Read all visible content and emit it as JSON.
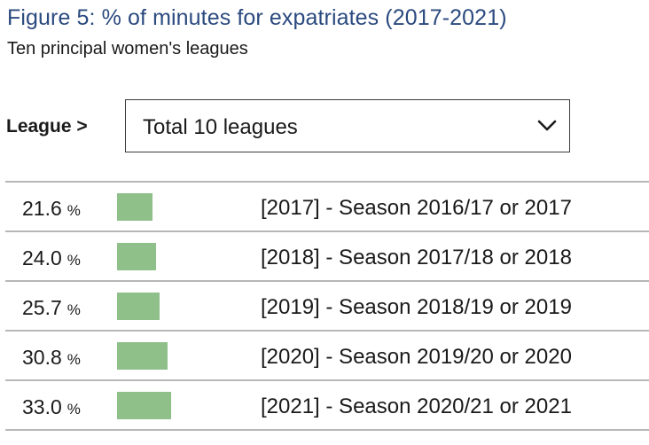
{
  "header": {
    "title": "Figure 5: % of minutes for expatriates (2017-2021)",
    "subtitle": "Ten principal women's leagues"
  },
  "filter": {
    "label": "League >",
    "selected": "Total 10 leagues",
    "icon": "chevron-down-icon"
  },
  "colors": {
    "title": "#2b4a7f",
    "bar": "#8fc08a",
    "rule": "#b8b8b8"
  },
  "chart_data": {
    "type": "bar",
    "orientation": "horizontal",
    "unit": "%",
    "xlim": [
      0,
      100
    ],
    "categories": [
      "[2017] - Season 2016/17 or 2017",
      "[2018] - Season 2017/18 or 2018",
      "[2019] - Season 2018/19 or 2019",
      "[2020] - Season 2019/20 or 2020",
      "[2021] - Season 2020/21 or 2021"
    ],
    "values": [
      21.6,
      24.0,
      25.7,
      30.8,
      33.0
    ],
    "value_labels": [
      "21.6",
      "24.0",
      "25.7",
      "30.8",
      "33.0"
    ]
  }
}
